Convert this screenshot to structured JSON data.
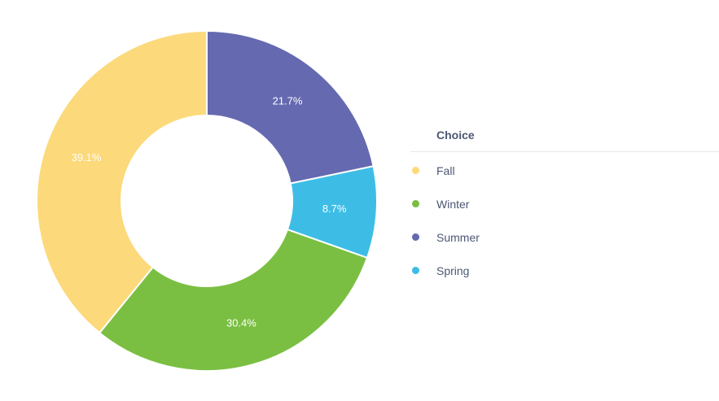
{
  "chart_data": {
    "type": "pie",
    "donut": true,
    "legend_title": "Choice",
    "legend_position": "right",
    "slices": [
      {
        "name": "Summer",
        "value": 21.7,
        "label": "21.7%",
        "color": "#6569b0"
      },
      {
        "name": "Spring",
        "value": 8.7,
        "label": "8.7%",
        "color": "#3dbde5"
      },
      {
        "name": "Winter",
        "value": 30.4,
        "label": "30.4%",
        "color": "#7abf42"
      },
      {
        "name": "Fall",
        "value": 39.1,
        "label": "39.1%",
        "color": "#fcd97a"
      }
    ],
    "legend": [
      {
        "name": "Fall",
        "color": "#fcd97a"
      },
      {
        "name": "Winter",
        "color": "#7abf42"
      },
      {
        "name": "Summer",
        "color": "#6569b0"
      },
      {
        "name": "Spring",
        "color": "#3dbde5"
      }
    ]
  }
}
